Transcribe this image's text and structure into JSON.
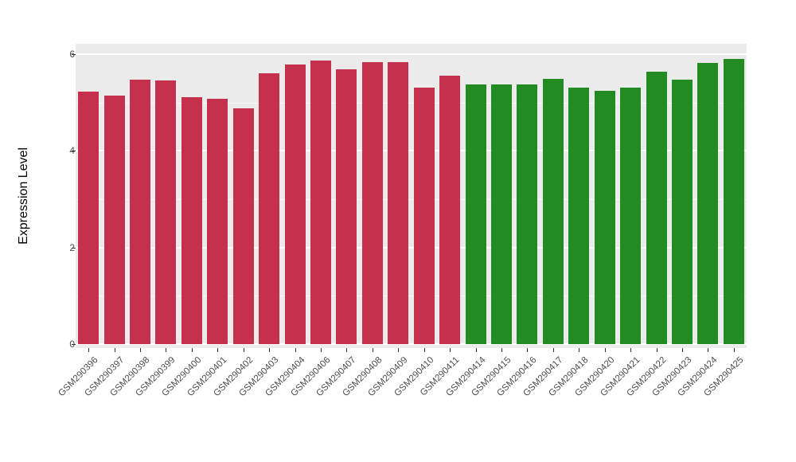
{
  "chart_data": {
    "type": "bar",
    "title": "",
    "xlabel": "",
    "ylabel": "Expression Level",
    "ylim": [
      0,
      6.3
    ],
    "yticks": [
      0,
      2,
      4,
      6
    ],
    "minor_yticks": [
      1,
      3,
      5
    ],
    "grid": "on",
    "legend": "none",
    "panel_bg": "#EBEBEB",
    "grid_color": "#FFFFFF",
    "categories": [
      "GSM290396",
      "GSM290397",
      "GSM290398",
      "GSM290399",
      "GSM290400",
      "GSM290401",
      "GSM290402",
      "GSM290403",
      "GSM290404",
      "GSM290406",
      "GSM290407",
      "GSM290408",
      "GSM290409",
      "GSM290410",
      "GSM290411",
      "GSM290414",
      "GSM290415",
      "GSM290416",
      "GSM290417",
      "GSM290418",
      "GSM290420",
      "GSM290421",
      "GSM290422",
      "GSM290423",
      "GSM290424",
      "GSM290425"
    ],
    "values": [
      5.22,
      5.14,
      5.47,
      5.45,
      5.11,
      5.07,
      4.88,
      5.6,
      5.78,
      5.87,
      5.68,
      5.84,
      5.84,
      5.31,
      5.56,
      5.37,
      5.37,
      5.37,
      5.49,
      5.31,
      5.24,
      5.31,
      5.63,
      5.48,
      5.82,
      5.9
    ],
    "bar_groups": [
      "red",
      "red",
      "red",
      "red",
      "red",
      "red",
      "red",
      "red",
      "red",
      "red",
      "red",
      "red",
      "red",
      "red",
      "red",
      "green",
      "green",
      "green",
      "green",
      "green",
      "green",
      "green",
      "green",
      "green",
      "green",
      "green"
    ],
    "group_colors": {
      "red": "#C5304C",
      "green": "#228B22"
    }
  }
}
